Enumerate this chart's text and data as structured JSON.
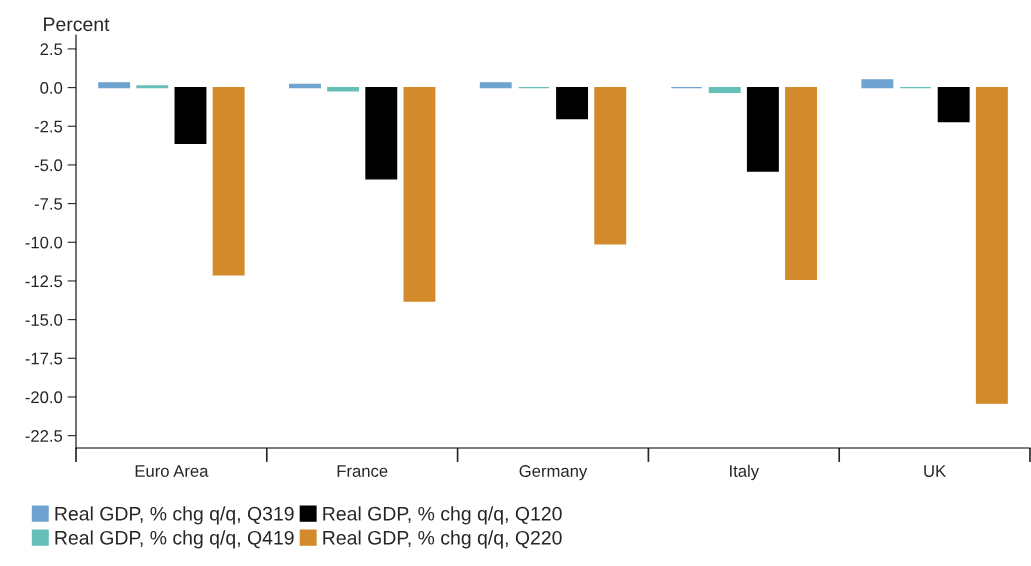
{
  "chart_data": {
    "type": "bar",
    "ylabel": "Percent",
    "categories": [
      "Euro Area",
      "France",
      "Germany",
      "Italy",
      "UK"
    ],
    "series": [
      {
        "name": "Real GDP, % chg q/q, Q319",
        "color": "#6fa3d0",
        "values": [
          0.3,
          0.2,
          0.3,
          0.0,
          0.5
        ]
      },
      {
        "name": "Real GDP, % chg q/q, Q419",
        "color": "#66bfb8",
        "values": [
          0.1,
          -0.2,
          0.0,
          -0.3,
          0.0
        ]
      },
      {
        "name": "Real GDP, % chg q/q, Q120",
        "color": "#000000",
        "values": [
          -3.6,
          -5.9,
          -2.0,
          -5.4,
          -2.2
        ]
      },
      {
        "name": "Real GDP, % chg q/q, Q220",
        "color": "#d38a2a",
        "values": [
          -12.1,
          -13.8,
          -10.1,
          -12.4,
          -20.4
        ]
      }
    ],
    "ylim": [
      -23.3,
      3.4
    ],
    "yticks": [
      2.5,
      {
        "value": 0,
        "label": "0.0"
      },
      -2.5,
      {
        "value": -5,
        "label": "-5.0"
      },
      -7.5,
      {
        "value": -10,
        "label": "-10.0"
      },
      -12.5,
      {
        "value": -15,
        "label": "-15.0"
      },
      -17.5,
      {
        "value": -20,
        "label": "-20.0"
      },
      -22.5
    ],
    "grid": false,
    "legend": "bottom left"
  }
}
